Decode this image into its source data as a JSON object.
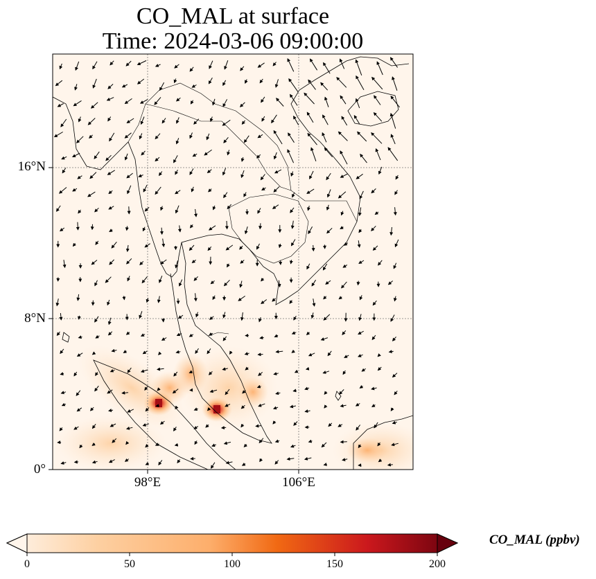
{
  "title": {
    "line1": "CO_MAL at surface",
    "line2": "Time: 2024-03-06 09:00:00"
  },
  "axes": {
    "lat_ticks": [
      "16°N",
      "8°N",
      "0°"
    ],
    "lon_ticks": [
      "98°E",
      "106°E"
    ],
    "lon_range": [
      93,
      112
    ],
    "lat_range": [
      0,
      22
    ]
  },
  "colorbar": {
    "label": "CO_MAL (ppbv)",
    "ticks": [
      "0",
      "50",
      "100",
      "150",
      "200"
    ],
    "range": [
      0,
      200
    ],
    "colors": [
      "#fff5eb",
      "#fdd0a2",
      "#fd8d3c",
      "#d94801",
      "#a50f15",
      "#67000d"
    ],
    "extend": "both"
  },
  "chart_data": {
    "type": "heatmap",
    "title": "CO_MAL at surface",
    "subtitle": "Time: 2024-03-06 09:00:00",
    "variable": "CO_MAL",
    "units": "ppbv",
    "hotspots": [
      {
        "lon": 98.6,
        "lat": 3.5,
        "value": 190
      },
      {
        "lon": 101.7,
        "lat": 3.1,
        "value": 180
      },
      {
        "lon": 100.2,
        "lat": 5.5,
        "value": 60
      },
      {
        "lon": 97.8,
        "lat": 5.2,
        "value": 40
      },
      {
        "lon": 109.5,
        "lat": 1.0,
        "value": 35
      }
    ],
    "wind_vectors": "shown"
  }
}
